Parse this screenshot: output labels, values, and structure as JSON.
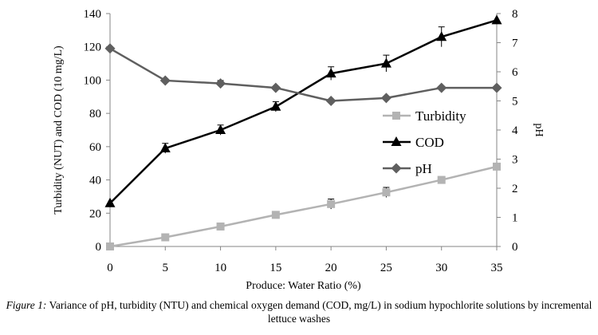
{
  "chart_data": {
    "type": "line",
    "x": [
      0,
      5,
      10,
      15,
      20,
      25,
      30,
      35
    ],
    "xlabel": "Produce: Water Ratio (%)",
    "ylabel": "Turbidity (NUT) and COD (10 mg/L)",
    "y2label": "pH",
    "xlim": [
      0,
      35
    ],
    "ylim": [
      0,
      140
    ],
    "y2lim": [
      0,
      8
    ],
    "xticks": [
      "0",
      "5",
      "10",
      "15",
      "20",
      "25",
      "30",
      "35"
    ],
    "yticks": [
      "0",
      "20",
      "40",
      "60",
      "80",
      "100",
      "120",
      "140"
    ],
    "y2ticks": [
      "0",
      "1",
      "2",
      "3",
      "4",
      "5",
      "6",
      "7",
      "8"
    ],
    "grid": false,
    "legend_position": "center-right",
    "series": [
      {
        "name": "Turbidity",
        "axis": "left",
        "marker": "square",
        "color": "#b3b3b3",
        "values": [
          0,
          5.5,
          12,
          19,
          25.5,
          32.5,
          40,
          48
        ],
        "error": [
          0,
          0,
          0,
          2,
          3,
          3,
          0,
          0
        ]
      },
      {
        "name": "COD",
        "axis": "left",
        "marker": "triangle",
        "color": "#000000",
        "values": [
          26,
          59,
          70,
          84,
          104,
          110,
          126,
          136
        ],
        "error": [
          0,
          3,
          3,
          3,
          4,
          5,
          6,
          0
        ]
      },
      {
        "name": "pH",
        "axis": "right",
        "marker": "diamond",
        "color": "#5f5f5f",
        "values": [
          6.8,
          5.7,
          5.6,
          5.45,
          5.0,
          5.1,
          5.45,
          5.45
        ],
        "error": [
          0,
          0,
          0.1,
          0,
          0,
          0,
          0,
          0
        ]
      }
    ]
  },
  "caption": {
    "label": "Figure 1:",
    "text": " Variance of pH, turbidity (NTU) and chemical oxygen demand (COD, mg/L) in sodium hypochlorite solutions by incremental lettuce washes"
  }
}
